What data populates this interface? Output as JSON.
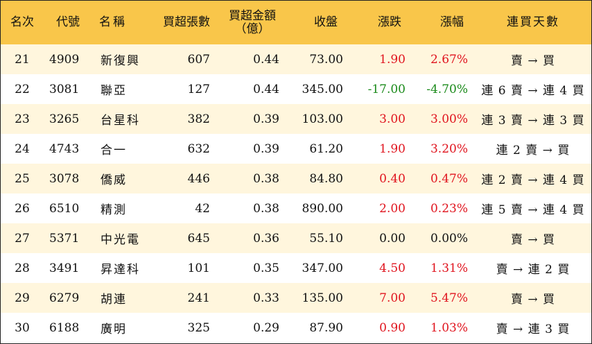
{
  "headers": {
    "rank": "名次",
    "code": "代號",
    "name": "名稱",
    "net_shares": "買超張數",
    "net_amount_line1": "買超金額",
    "net_amount_line2": "（億）",
    "close": "收盤",
    "change": "漲跌",
    "pct": "漲幅",
    "streak": "連買天數"
  },
  "rows": [
    {
      "rank": "21",
      "code": "4909",
      "name": "新復興",
      "net_shares": "607",
      "net_amount": "0.44",
      "close": "73.00",
      "change": "1.90",
      "pct": "2.67%",
      "dir": "up",
      "streak": "賣 → 買"
    },
    {
      "rank": "22",
      "code": "3081",
      "name": "聯亞",
      "net_shares": "127",
      "net_amount": "0.44",
      "close": "345.00",
      "change": "-17.00",
      "pct": "-4.70%",
      "dir": "down",
      "streak": "連 6 賣 → 連 4 買"
    },
    {
      "rank": "23",
      "code": "3265",
      "name": "台星科",
      "net_shares": "382",
      "net_amount": "0.39",
      "close": "103.00",
      "change": "3.00",
      "pct": "3.00%",
      "dir": "up",
      "streak": "連 3 賣 → 連 3 買"
    },
    {
      "rank": "24",
      "code": "4743",
      "name": "合一",
      "net_shares": "632",
      "net_amount": "0.39",
      "close": "61.20",
      "change": "1.90",
      "pct": "3.20%",
      "dir": "up",
      "streak": "連 2 賣 → 買"
    },
    {
      "rank": "25",
      "code": "3078",
      "name": "僑威",
      "net_shares": "446",
      "net_amount": "0.38",
      "close": "84.80",
      "change": "0.40",
      "pct": "0.47%",
      "dir": "up",
      "streak": "連 2 賣 → 連 4 買"
    },
    {
      "rank": "26",
      "code": "6510",
      "name": "精測",
      "net_shares": "42",
      "net_amount": "0.38",
      "close": "890.00",
      "change": "2.00",
      "pct": "0.23%",
      "dir": "up",
      "streak": "連 5 賣 → 連 4 買"
    },
    {
      "rank": "27",
      "code": "5371",
      "name": "中光電",
      "net_shares": "645",
      "net_amount": "0.36",
      "close": "55.10",
      "change": "0.00",
      "pct": "0.00%",
      "dir": "flat",
      "streak": "賣 → 買"
    },
    {
      "rank": "28",
      "code": "3491",
      "name": "昇達科",
      "net_shares": "101",
      "net_amount": "0.35",
      "close": "347.00",
      "change": "4.50",
      "pct": "1.31%",
      "dir": "up",
      "streak": "賣 → 連 2 買"
    },
    {
      "rank": "29",
      "code": "6279",
      "name": "胡連",
      "net_shares": "241",
      "net_amount": "0.33",
      "close": "135.00",
      "change": "7.00",
      "pct": "5.47%",
      "dir": "up",
      "streak": "賣 → 買"
    },
    {
      "rank": "30",
      "code": "6188",
      "name": "廣明",
      "net_shares": "325",
      "net_amount": "0.29",
      "close": "87.90",
      "change": "0.90",
      "pct": "1.03%",
      "dir": "up",
      "streak": "賣 → 連 3 買"
    }
  ],
  "colors": {
    "header_bg": "#f9c64a",
    "odd_row_bg": "#fff6dd",
    "even_row_bg": "#ffffff",
    "up": "#e0141e",
    "down": "#1a8a1a",
    "flat": "#111111"
  }
}
